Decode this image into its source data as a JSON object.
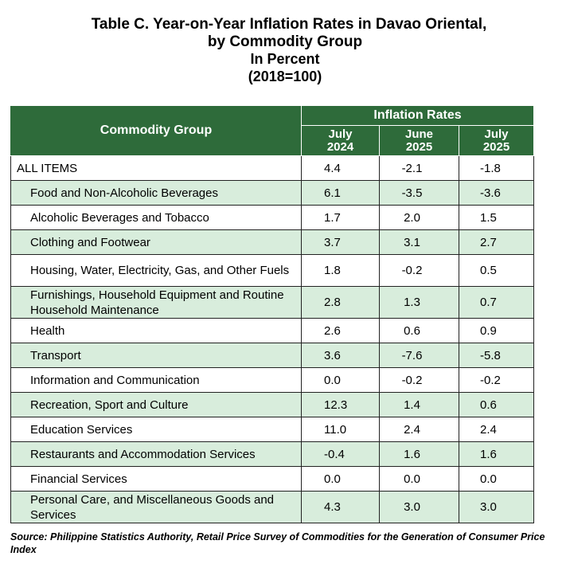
{
  "title": {
    "line1": "Table C. Year-on-Year Inflation Rates in Davao Oriental,",
    "line2": "by Commodity Group",
    "line3": "In Percent",
    "line4": "(2018=100)"
  },
  "table": {
    "group_header": "Commodity Group",
    "rates_header": "Inflation Rates",
    "periods": [
      {
        "month": "July",
        "year": "2024"
      },
      {
        "month": "June",
        "year": "2025"
      },
      {
        "month": "July",
        "year": "2025"
      }
    ],
    "rows": [
      {
        "label": "ALL ITEMS",
        "values": [
          "4.4",
          "-2.1",
          "-1.8"
        ]
      },
      {
        "label": "Food and Non-Alcoholic Beverages",
        "values": [
          "6.1",
          "-3.5",
          "-3.6"
        ]
      },
      {
        "label": "Alcoholic Beverages and Tobacco",
        "values": [
          "1.7",
          "2.0",
          "1.5"
        ]
      },
      {
        "label": "Clothing and Footwear",
        "values": [
          "3.7",
          "3.1",
          "2.7"
        ]
      },
      {
        "label": "Housing, Water, Electricity, Gas, and Other Fuels",
        "values": [
          "1.8",
          "-0.2",
          "0.5"
        ]
      },
      {
        "label": "Furnishings, Household Equipment and Routine Household Maintenance",
        "values": [
          "2.8",
          "1.3",
          "0.7"
        ]
      },
      {
        "label": "Health",
        "values": [
          "2.6",
          "0.6",
          "0.9"
        ]
      },
      {
        "label": "Transport",
        "values": [
          "3.6",
          "-7.6",
          "-5.8"
        ]
      },
      {
        "label": "Information and Communication",
        "values": [
          "0.0",
          "-0.2",
          "-0.2"
        ]
      },
      {
        "label": "Recreation, Sport and Culture",
        "values": [
          "12.3",
          "1.4",
          "0.6"
        ]
      },
      {
        "label": "Education Services",
        "values": [
          "11.0",
          "2.4",
          "2.4"
        ]
      },
      {
        "label": "Restaurants and Accommodation Services",
        "values": [
          "-0.4",
          "1.6",
          "1.6"
        ]
      },
      {
        "label": "Financial Services",
        "values": [
          "0.0",
          "0.0",
          "0.0"
        ]
      },
      {
        "label": "Personal Care, and Miscellaneous Goods and Services",
        "values": [
          "4.3",
          "3.0",
          "3.0"
        ]
      }
    ]
  },
  "source": "Source: Philippine Statistics Authority, Retail Price Survey of Commodities for the Generation of Consumer Price Index",
  "colors": {
    "header_green": "#2e6b3a",
    "row_shade": "#d8eddc"
  }
}
